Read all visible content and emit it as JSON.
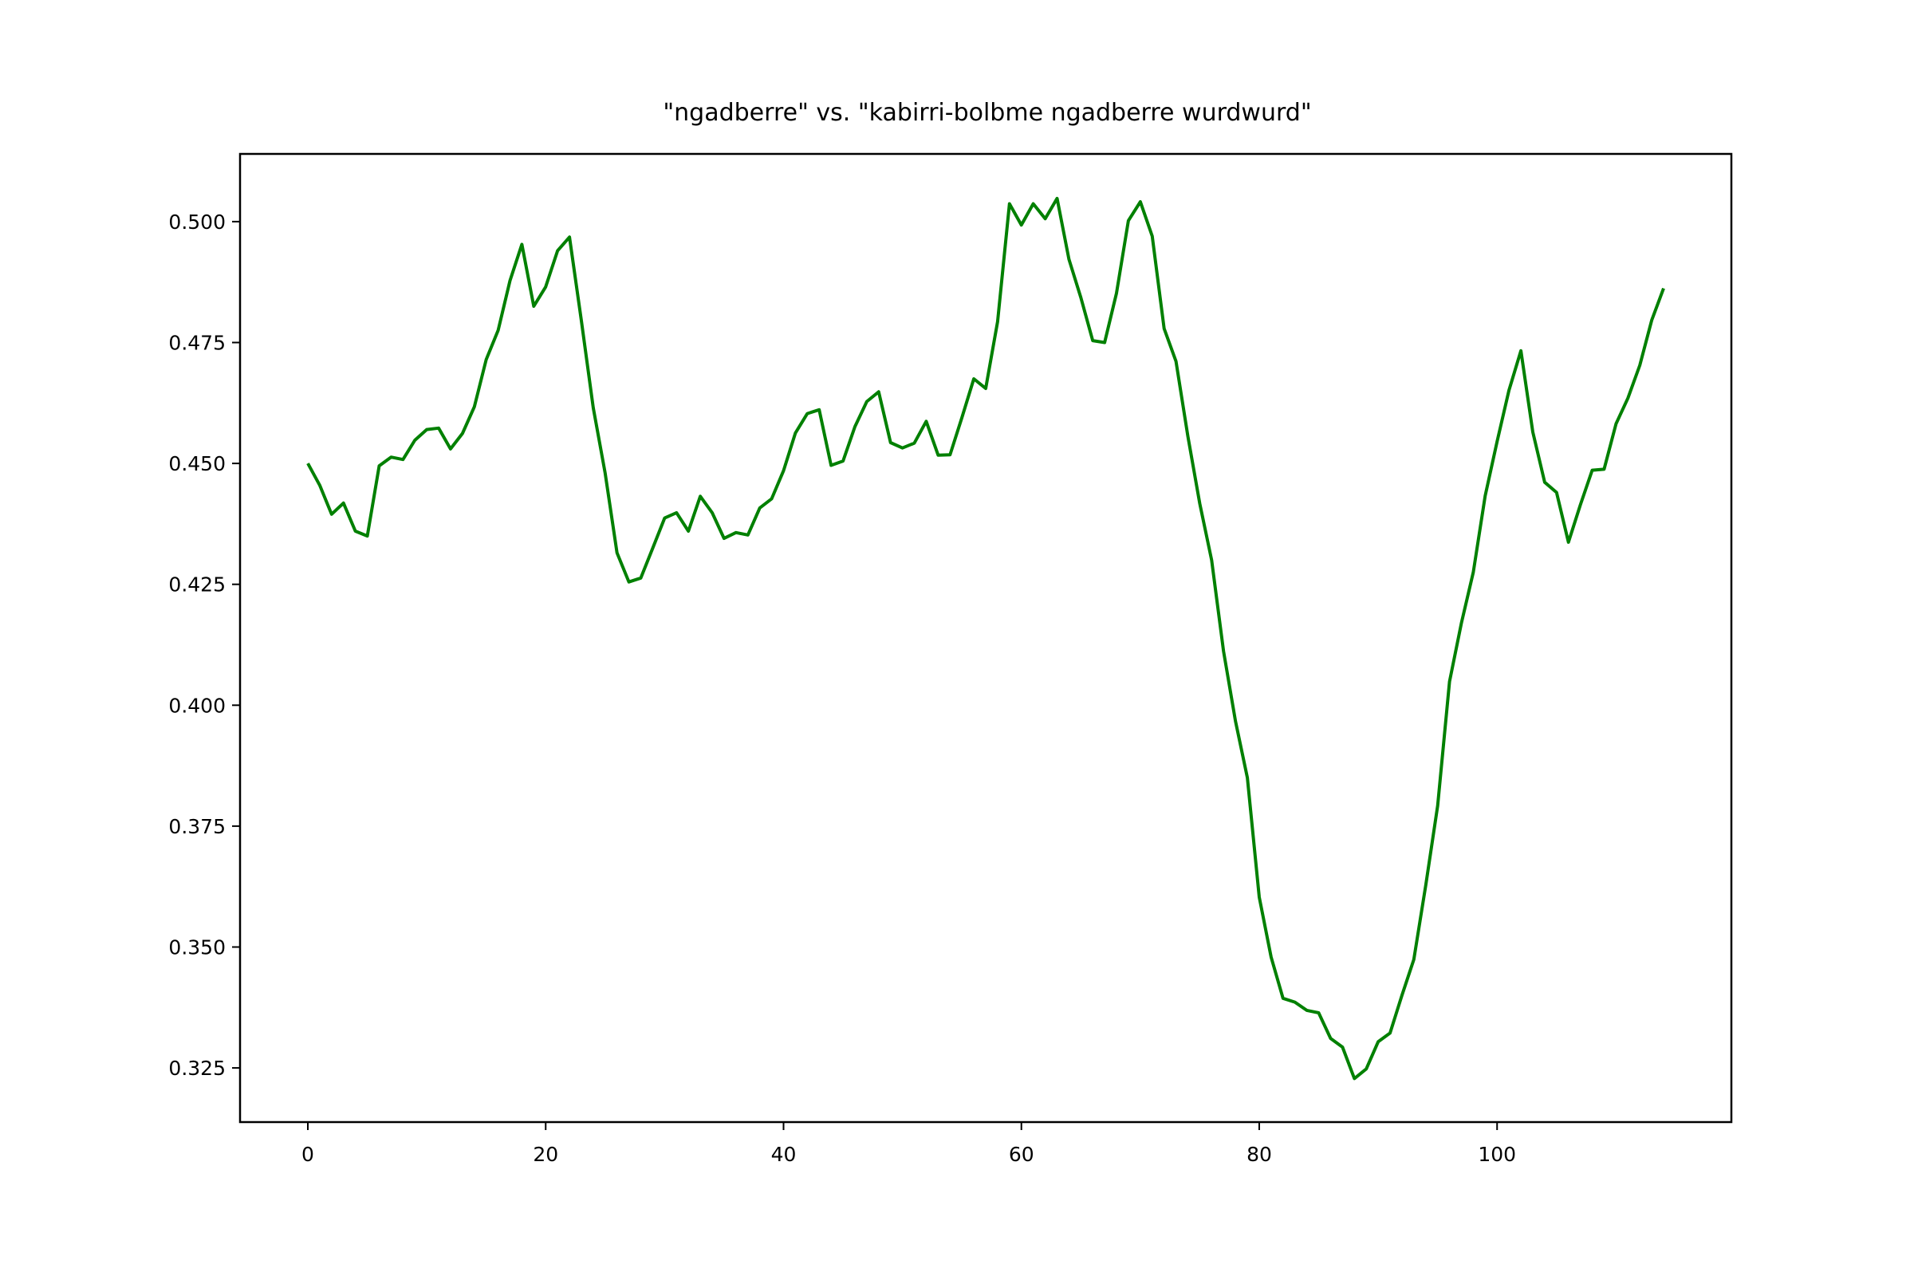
{
  "chart_data": {
    "type": "line",
    "title": "\"ngadberre\" vs. \"kabirri-bolbme ngadberre wurdwurd\"",
    "xlabel": "",
    "ylabel": "",
    "xlim": [
      -5.7,
      119.7
    ],
    "ylim": [
      0.3138,
      0.514
    ],
    "xticks": [
      0,
      20,
      40,
      60,
      80,
      100
    ],
    "xtick_labels": [
      "0",
      "20",
      "40",
      "60",
      "80",
      "100"
    ],
    "yticks": [
      0.325,
      0.35,
      0.375,
      0.4,
      0.425,
      0.45,
      0.475,
      0.5
    ],
    "ytick_labels": [
      "0.325",
      "0.350",
      "0.375",
      "0.400",
      "0.425",
      "0.450",
      "0.475",
      "0.500"
    ],
    "grid": false,
    "series": [
      {
        "color": "#008000",
        "x": [
          0,
          1,
          2,
          3,
          4,
          5,
          6,
          7,
          8,
          9,
          10,
          11,
          12,
          13,
          14,
          15,
          16,
          17,
          18,
          19,
          20,
          21,
          22,
          23,
          24,
          25,
          26,
          27,
          28,
          29,
          30,
          31,
          32,
          33,
          34,
          35,
          36,
          37,
          38,
          39,
          40,
          41,
          42,
          43,
          44,
          45,
          46,
          47,
          48,
          49,
          50,
          51,
          52,
          53,
          54,
          55,
          56,
          57,
          58,
          59,
          60,
          61,
          62,
          63,
          64,
          65,
          66,
          67,
          68,
          69,
          70,
          71,
          72,
          73,
          74,
          75,
          76,
          77,
          78,
          79,
          80,
          81,
          82,
          83,
          84,
          85,
          86,
          87,
          88,
          89,
          90,
          91,
          92,
          93,
          94,
          95,
          96,
          97,
          98,
          99,
          100,
          101,
          102,
          103,
          104,
          105,
          106,
          107,
          108,
          109,
          110,
          111,
          112,
          113,
          114
        ],
        "values": [
          0.45,
          0.4455,
          0.4395,
          0.4418,
          0.436,
          0.435,
          0.4495,
          0.4513,
          0.4508,
          0.4548,
          0.457,
          0.4573,
          0.453,
          0.4562,
          0.4617,
          0.4715,
          0.4775,
          0.4878,
          0.4953,
          0.4825,
          0.4865,
          0.494,
          0.4968,
          0.4795,
          0.4615,
          0.448,
          0.4315,
          0.4255,
          0.4263,
          0.4325,
          0.4387,
          0.4398,
          0.436,
          0.4432,
          0.4398,
          0.4345,
          0.4357,
          0.4352,
          0.4408,
          0.4427,
          0.4485,
          0.4563,
          0.4603,
          0.4611,
          0.4496,
          0.4505,
          0.4576,
          0.4628,
          0.4648,
          0.4543,
          0.4532,
          0.4542,
          0.4587,
          0.4517,
          0.4518,
          0.4595,
          0.4675,
          0.4655,
          0.4793,
          0.5037,
          0.4993,
          0.5037,
          0.5006,
          0.5048,
          0.4922,
          0.4843,
          0.4754,
          0.475,
          0.4852,
          0.5002,
          0.5041,
          0.497,
          0.4779,
          0.4711,
          0.4556,
          0.4417,
          0.43,
          0.4112,
          0.3967,
          0.385,
          0.3603,
          0.3479,
          0.3394,
          0.3386,
          0.3369,
          0.3364,
          0.3311,
          0.3293,
          0.3228,
          0.3248,
          0.3304,
          0.3322,
          0.34,
          0.3474,
          0.3628,
          0.3792,
          0.4049,
          0.417,
          0.4275,
          0.4433,
          0.4545,
          0.4651,
          0.4733,
          0.4565,
          0.4461,
          0.444,
          0.4337,
          0.4414,
          0.4486,
          0.4488,
          0.4582,
          0.4635,
          0.4703,
          0.4796,
          0.4862
        ]
      }
    ]
  }
}
